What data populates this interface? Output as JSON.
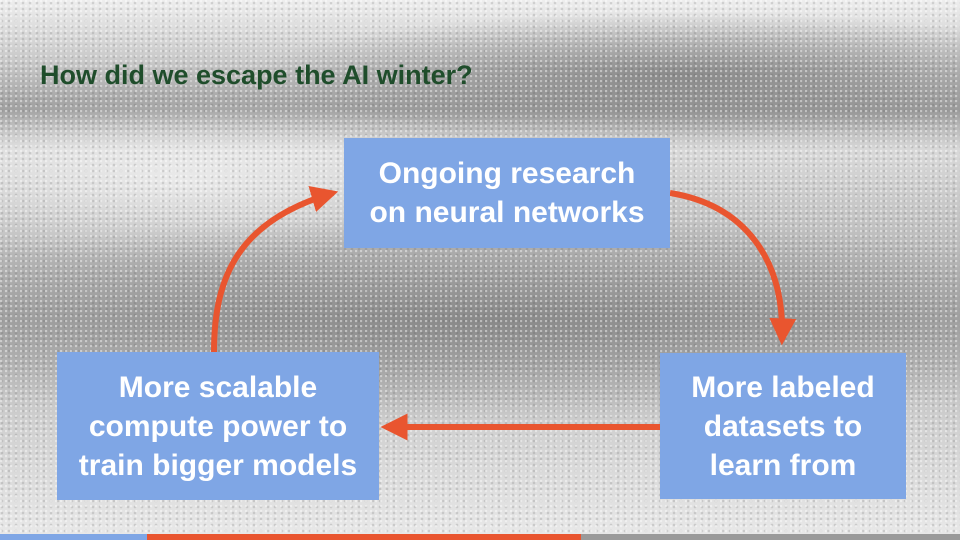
{
  "slide": {
    "title": "How did we escape the AI winter?"
  },
  "diagram": {
    "nodes": [
      {
        "id": "research",
        "label": "Ongoing research\non neural networks"
      },
      {
        "id": "datasets",
        "label": "More labeled\ndatasets to\nlearn from"
      },
      {
        "id": "compute",
        "label": "More scalable\ncompute power to\ntrain bigger models"
      }
    ],
    "edges": [
      {
        "from": "research",
        "to": "datasets"
      },
      {
        "from": "datasets",
        "to": "compute"
      },
      {
        "from": "compute",
        "to": "research"
      }
    ]
  },
  "colors": {
    "title": "#1f4d2b",
    "box_fill": "#7fa6e5",
    "box_text": "#ffffff",
    "arrow": "#e9552f"
  }
}
